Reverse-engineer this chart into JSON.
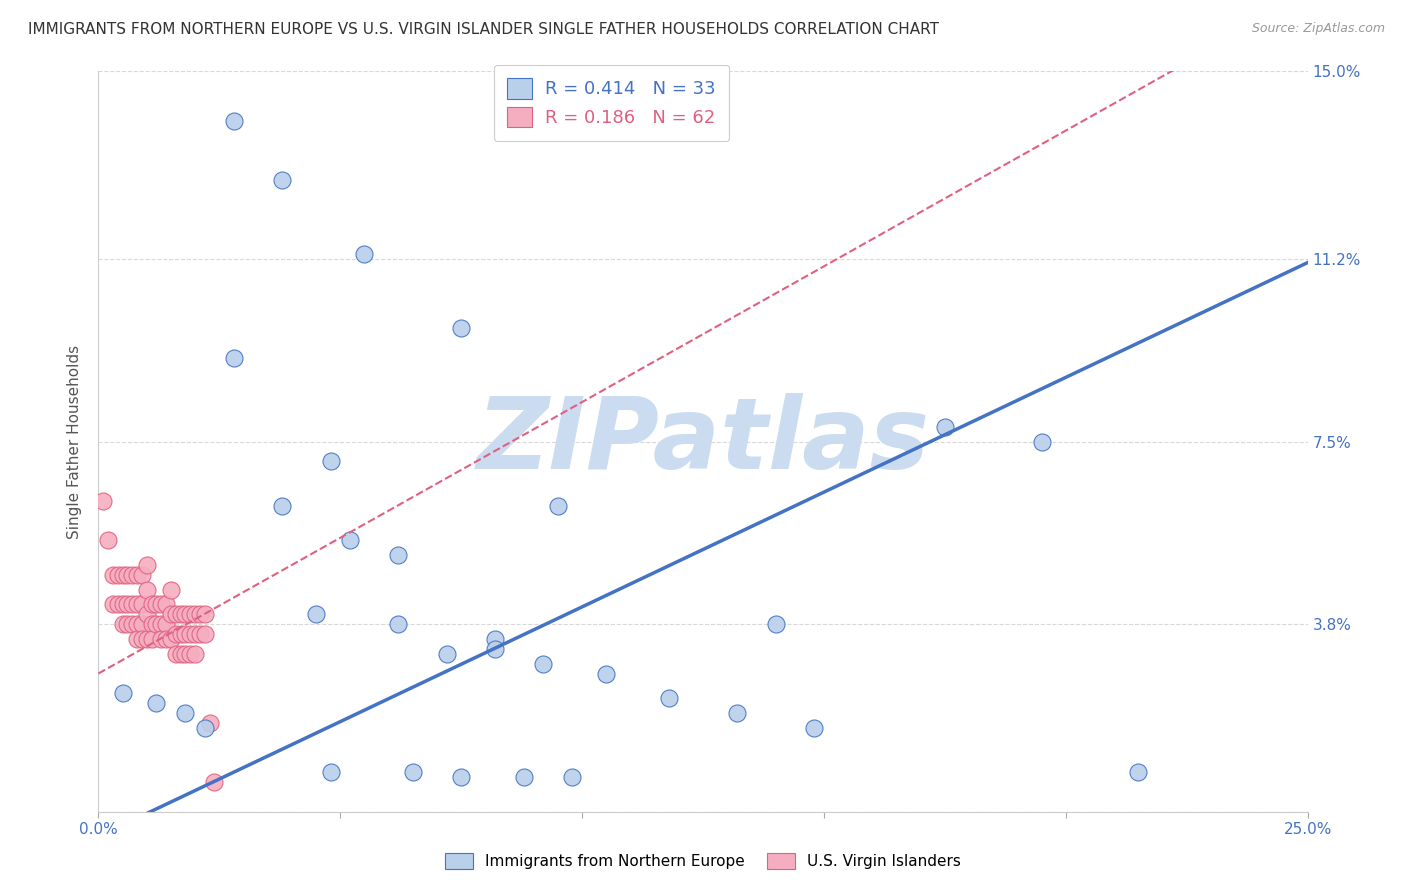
{
  "title": "IMMIGRANTS FROM NORTHERN EUROPE VS U.S. VIRGIN ISLANDER SINGLE FATHER HOUSEHOLDS CORRELATION CHART",
  "source": "Source: ZipAtlas.com",
  "ylabel": "Single Father Households",
  "xlim": [
    0.0,
    0.25
  ],
  "ylim": [
    0.0,
    0.15
  ],
  "blue_R": 0.414,
  "blue_N": 33,
  "pink_R": 0.186,
  "pink_N": 62,
  "blue_color": "#b8d0ea",
  "pink_color": "#f5aec0",
  "blue_line_color": "#4472c4",
  "pink_line_color": "#e06080",
  "legend_label_blue": "Immigrants from Northern Europe",
  "legend_label_pink": "U.S. Virgin Islanders",
  "watermark_text": "ZIPatlas",
  "blue_x": [
    0.028,
    0.038,
    0.055,
    0.075,
    0.028,
    0.048,
    0.095,
    0.14,
    0.005,
    0.012,
    0.018,
    0.022,
    0.045,
    0.062,
    0.072,
    0.082,
    0.092,
    0.082,
    0.105,
    0.118,
    0.132,
    0.148,
    0.175,
    0.195,
    0.215,
    0.048,
    0.065,
    0.075,
    0.088,
    0.098,
    0.038,
    0.052,
    0.062
  ],
  "blue_y": [
    0.14,
    0.128,
    0.113,
    0.098,
    0.092,
    0.071,
    0.062,
    0.038,
    0.024,
    0.022,
    0.02,
    0.017,
    0.04,
    0.038,
    0.032,
    0.035,
    0.03,
    0.033,
    0.028,
    0.023,
    0.02,
    0.017,
    0.078,
    0.075,
    0.008,
    0.008,
    0.008,
    0.007,
    0.007,
    0.007,
    0.062,
    0.055,
    0.052
  ],
  "pink_x": [
    0.001,
    0.002,
    0.003,
    0.003,
    0.004,
    0.004,
    0.005,
    0.005,
    0.005,
    0.006,
    0.006,
    0.006,
    0.007,
    0.007,
    0.007,
    0.008,
    0.008,
    0.008,
    0.008,
    0.009,
    0.009,
    0.009,
    0.009,
    0.01,
    0.01,
    0.01,
    0.01,
    0.011,
    0.011,
    0.011,
    0.012,
    0.012,
    0.013,
    0.013,
    0.013,
    0.014,
    0.014,
    0.014,
    0.015,
    0.015,
    0.015,
    0.016,
    0.016,
    0.016,
    0.017,
    0.017,
    0.017,
    0.018,
    0.018,
    0.018,
    0.019,
    0.019,
    0.019,
    0.02,
    0.02,
    0.02,
    0.021,
    0.021,
    0.022,
    0.022,
    0.023,
    0.024
  ],
  "pink_y": [
    0.063,
    0.055,
    0.048,
    0.042,
    0.048,
    0.042,
    0.048,
    0.042,
    0.038,
    0.048,
    0.042,
    0.038,
    0.048,
    0.042,
    0.038,
    0.048,
    0.042,
    0.038,
    0.035,
    0.048,
    0.042,
    0.038,
    0.035,
    0.05,
    0.045,
    0.04,
    0.035,
    0.042,
    0.038,
    0.035,
    0.042,
    0.038,
    0.042,
    0.038,
    0.035,
    0.042,
    0.038,
    0.035,
    0.045,
    0.04,
    0.035,
    0.04,
    0.036,
    0.032,
    0.04,
    0.036,
    0.032,
    0.04,
    0.036,
    0.032,
    0.04,
    0.036,
    0.032,
    0.04,
    0.036,
    0.032,
    0.04,
    0.036,
    0.04,
    0.036,
    0.018,
    0.006
  ],
  "grid_color": "#d8d8d8",
  "background_color": "#ffffff",
  "title_fontsize": 11,
  "axis_label_fontsize": 11,
  "tick_fontsize": 11,
  "watermark_color": "#ccdcf0",
  "watermark_fontsize": 72,
  "blue_line_intercept": -0.005,
  "blue_line_slope": 0.465,
  "pink_line_intercept": 0.028,
  "pink_line_slope": 0.55
}
